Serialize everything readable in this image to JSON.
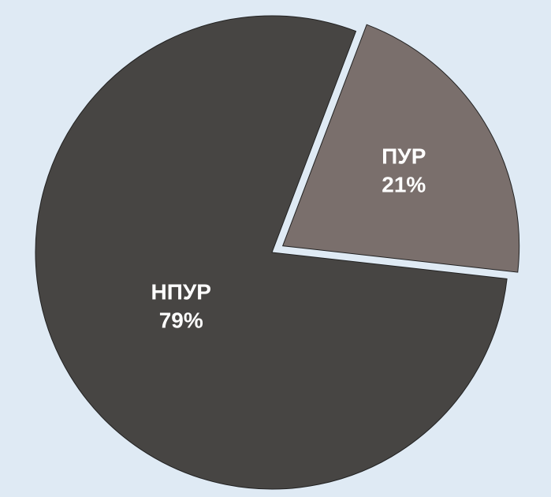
{
  "chart_data": {
    "type": "pie",
    "categories": [
      "ПУР",
      "НПУР"
    ],
    "values": [
      21,
      79
    ],
    "value_labels": [
      "21%",
      "79%"
    ],
    "colors": [
      "#7a6f6c",
      "#474543"
    ]
  }
}
